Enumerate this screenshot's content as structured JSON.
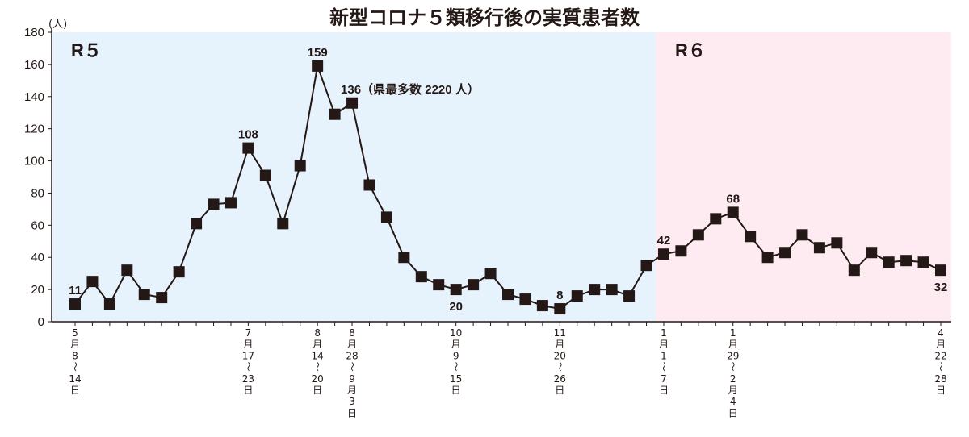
{
  "chart_data": {
    "type": "line",
    "title": "新型コロナ５類移行後の実質患者数",
    "y_unit": "(人)",
    "ylim": [
      0,
      180
    ],
    "yticks": [
      "0",
      "20",
      "40",
      "60",
      "80",
      "100",
      "120",
      "140",
      "160",
      "180"
    ],
    "grid": false,
    "periods": [
      {
        "label": "R５",
        "start_index": 0,
        "end_index": 34,
        "color": "#e6f3fc"
      },
      {
        "label": "R６",
        "start_index": 34,
        "end_index": 51,
        "color": "#fdebf1"
      }
    ],
    "series": [
      {
        "color": "#231815",
        "values": [
          11,
          25,
          11,
          32,
          17,
          15,
          31,
          61,
          73,
          74,
          108,
          91,
          61,
          97,
          159,
          129,
          136,
          85,
          65,
          40,
          28,
          23,
          20,
          23,
          30,
          17,
          14,
          10,
          8,
          16,
          20,
          20,
          16,
          35,
          42,
          44,
          54,
          64,
          68,
          53,
          40,
          43,
          54,
          46,
          49,
          32,
          43,
          37,
          38,
          37,
          32
        ]
      }
    ],
    "x_labels": [
      {
        "index": 0,
        "lines": [
          "5",
          "月",
          "8",
          "〜",
          "14",
          "日"
        ]
      },
      {
        "index": 10,
        "lines": [
          "7",
          "月",
          "17",
          "〜",
          "23",
          "日"
        ]
      },
      {
        "index": 14,
        "lines": [
          "8",
          "月",
          "14",
          "〜",
          "20",
          "日"
        ]
      },
      {
        "index": 16,
        "lines": [
          "8",
          "月",
          "28",
          "〜",
          "9",
          "月",
          "3",
          "日"
        ]
      },
      {
        "index": 22,
        "lines": [
          "10",
          "月",
          "9",
          "〜",
          "15",
          "日"
        ]
      },
      {
        "index": 28,
        "lines": [
          "11",
          "月",
          "20",
          "〜",
          "26",
          "日"
        ]
      },
      {
        "index": 34,
        "lines": [
          "1",
          "月",
          "1",
          "〜",
          "7",
          "日"
        ]
      },
      {
        "index": 38,
        "lines": [
          "1",
          "月",
          "29",
          "〜",
          "2",
          "月",
          "4",
          "日"
        ]
      },
      {
        "index": 50,
        "lines": [
          "4",
          "月",
          "22",
          "〜",
          "28",
          "日"
        ]
      }
    ],
    "annotations": [
      {
        "index": 0,
        "text": "11",
        "position": "above"
      },
      {
        "index": 10,
        "text": "108",
        "position": "above"
      },
      {
        "index": 14,
        "text": "159",
        "position": "above"
      },
      {
        "index": 16,
        "text": "136（県最多数 2220 人）",
        "position": "above-right"
      },
      {
        "index": 22,
        "text": "20",
        "position": "below"
      },
      {
        "index": 28,
        "text": "8",
        "position": "above"
      },
      {
        "index": 34,
        "text": "42",
        "position": "above"
      },
      {
        "index": 38,
        "text": "68",
        "position": "above"
      },
      {
        "index": 50,
        "text": "32",
        "position": "below"
      }
    ]
  }
}
